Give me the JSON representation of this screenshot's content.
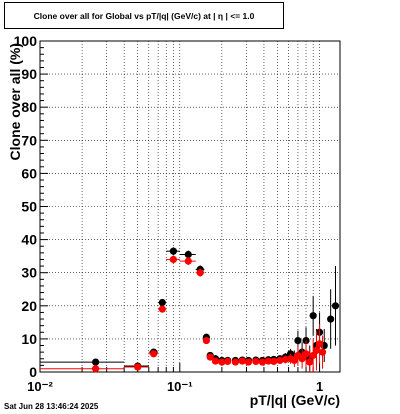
{
  "title": "Clone  over all for Global vs pT/|q| (GeV/c) at |  η  | <= 1.0",
  "timestamp": "Sat Jun 28 13:46:24 2025",
  "chart_data": {
    "type": "scatter",
    "title": "Clone  over all for Global vs pT/|q| (GeV/c) at |  η  | <= 1.0",
    "xlabel": "pT/|q| (GeV/c)",
    "ylabel": "Clone  over all (%)",
    "x_scale": "log",
    "xlim": [
      0.01,
      1.4
    ],
    "ylim": [
      0,
      100
    ],
    "x_tick_labels": [
      "10⁻²",
      "10⁻¹",
      "1"
    ],
    "y_tick_labels": [
      "0",
      "10",
      "20",
      "30",
      "40",
      "50",
      "60",
      "70",
      "80",
      "90",
      "100"
    ],
    "grid": true,
    "legend": "none",
    "series": [
      {
        "color": "#000000",
        "points": [
          {
            "x": 0.025,
            "y": 3.0,
            "xlo": 0.01,
            "xhi": 0.04,
            "err": 0.4
          },
          {
            "x": 0.05,
            "y": 1.8,
            "xlo": 0.04,
            "xhi": 0.06,
            "err": 0.3
          },
          {
            "x": 0.065,
            "y": 6.0,
            "xlo": 0.06,
            "xhi": 0.07,
            "err": 0.6
          },
          {
            "x": 0.075,
            "y": 21.0,
            "xlo": 0.07,
            "xhi": 0.08,
            "err": 1.0
          },
          {
            "x": 0.09,
            "y": 36.5,
            "xlo": 0.08,
            "xhi": 0.1,
            "err": 1.2
          },
          {
            "x": 0.115,
            "y": 35.5,
            "xlo": 0.1,
            "xhi": 0.13,
            "err": 1.2
          },
          {
            "x": 0.14,
            "y": 31.0,
            "xlo": 0.13,
            "xhi": 0.15,
            "err": 1.2
          },
          {
            "x": 0.155,
            "y": 10.5,
            "xlo": 0.15,
            "xhi": 0.16,
            "err": 0.8
          },
          {
            "x": 0.165,
            "y": 5.0,
            "xlo": 0.16,
            "xhi": 0.17,
            "err": 0.6
          },
          {
            "x": 0.18,
            "y": 4.0,
            "xlo": 0.175,
            "xhi": 0.185,
            "err": 0.5
          },
          {
            "x": 0.2,
            "y": 3.5,
            "xlo": 0.19,
            "xhi": 0.21,
            "err": 0.5
          },
          {
            "x": 0.22,
            "y": 3.5,
            "xlo": 0.21,
            "xhi": 0.23,
            "err": 0.5
          },
          {
            "x": 0.25,
            "y": 3.5,
            "xlo": 0.24,
            "xhi": 0.26,
            "err": 0.5
          },
          {
            "x": 0.28,
            "y": 3.6,
            "xlo": 0.27,
            "xhi": 0.29,
            "err": 0.5
          },
          {
            "x": 0.31,
            "y": 3.5,
            "xlo": 0.3,
            "xhi": 0.32,
            "err": 0.5
          },
          {
            "x": 0.35,
            "y": 3.6,
            "xlo": 0.34,
            "xhi": 0.36,
            "err": 0.6
          },
          {
            "x": 0.39,
            "y": 3.5,
            "xlo": 0.38,
            "xhi": 0.4,
            "err": 0.6
          },
          {
            "x": 0.43,
            "y": 3.7,
            "xlo": 0.42,
            "xhi": 0.44,
            "err": 0.7
          },
          {
            "x": 0.47,
            "y": 3.8,
            "xlo": 0.46,
            "xhi": 0.48,
            "err": 0.8
          },
          {
            "x": 0.52,
            "y": 4.0,
            "xlo": 0.51,
            "xhi": 0.53,
            "err": 1.0
          },
          {
            "x": 0.57,
            "y": 4.5,
            "xlo": 0.56,
            "xhi": 0.58,
            "err": 1.2
          },
          {
            "x": 0.62,
            "y": 5.5,
            "xlo": 0.61,
            "xhi": 0.63,
            "err": 1.5
          },
          {
            "x": 0.66,
            "y": 4.5,
            "xlo": 0.65,
            "xhi": 0.67,
            "err": 2.0
          },
          {
            "x": 0.7,
            "y": 9.5,
            "xlo": 0.69,
            "xhi": 0.71,
            "err": 3.0
          },
          {
            "x": 0.75,
            "y": 6.0,
            "xlo": 0.74,
            "xhi": 0.76,
            "err": 3.0
          },
          {
            "x": 0.8,
            "y": 9.5,
            "xlo": 0.79,
            "xhi": 0.81,
            "err": 4.0
          },
          {
            "x": 0.85,
            "y": 4.0,
            "xlo": 0.84,
            "xhi": 0.86,
            "err": 4.0
          },
          {
            "x": 0.9,
            "y": 17.0,
            "xlo": 0.89,
            "xhi": 0.91,
            "err": 6.0
          },
          {
            "x": 0.95,
            "y": 8.0,
            "xlo": 0.94,
            "xhi": 0.96,
            "err": 5.0
          },
          {
            "x": 1.0,
            "y": 12.0,
            "xlo": 0.99,
            "xhi": 1.01,
            "err": 6.0
          },
          {
            "x": 1.08,
            "y": 8.0,
            "xlo": 1.07,
            "xhi": 1.09,
            "err": 5.0
          },
          {
            "x": 1.2,
            "y": 16.0,
            "xlo": 1.15,
            "xhi": 1.25,
            "err": 9.0
          },
          {
            "x": 1.3,
            "y": 20.0,
            "xlo": 1.27,
            "xhi": 1.33,
            "err": 12.0
          }
        ]
      },
      {
        "color": "#ff0000",
        "points": [
          {
            "x": 0.025,
            "y": 1.0,
            "xlo": 0.01,
            "xhi": 0.04,
            "err": 0.3
          },
          {
            "x": 0.05,
            "y": 1.5,
            "xlo": 0.04,
            "xhi": 0.06,
            "err": 0.3
          },
          {
            "x": 0.065,
            "y": 5.5,
            "xlo": 0.06,
            "xhi": 0.07,
            "err": 0.6
          },
          {
            "x": 0.075,
            "y": 19.0,
            "xlo": 0.07,
            "xhi": 0.08,
            "err": 1.0
          },
          {
            "x": 0.09,
            "y": 34.0,
            "xlo": 0.08,
            "xhi": 0.1,
            "err": 1.2
          },
          {
            "x": 0.115,
            "y": 33.5,
            "xlo": 0.1,
            "xhi": 0.13,
            "err": 1.2
          },
          {
            "x": 0.14,
            "y": 30.0,
            "xlo": 0.13,
            "xhi": 0.15,
            "err": 1.2
          },
          {
            "x": 0.155,
            "y": 9.5,
            "xlo": 0.15,
            "xhi": 0.16,
            "err": 0.8
          },
          {
            "x": 0.165,
            "y": 4.5,
            "xlo": 0.16,
            "xhi": 0.17,
            "err": 0.6
          },
          {
            "x": 0.18,
            "y": 3.3,
            "xlo": 0.175,
            "xhi": 0.185,
            "err": 0.5
          },
          {
            "x": 0.2,
            "y": 3.0,
            "xlo": 0.19,
            "xhi": 0.21,
            "err": 0.5
          },
          {
            "x": 0.22,
            "y": 3.2,
            "xlo": 0.21,
            "xhi": 0.23,
            "err": 0.5
          },
          {
            "x": 0.25,
            "y": 3.0,
            "xlo": 0.24,
            "xhi": 0.26,
            "err": 0.5
          },
          {
            "x": 0.28,
            "y": 3.3,
            "xlo": 0.27,
            "xhi": 0.29,
            "err": 0.5
          },
          {
            "x": 0.31,
            "y": 3.0,
            "xlo": 0.3,
            "xhi": 0.32,
            "err": 0.5
          },
          {
            "x": 0.35,
            "y": 3.2,
            "xlo": 0.34,
            "xhi": 0.36,
            "err": 0.6
          },
          {
            "x": 0.39,
            "y": 3.0,
            "xlo": 0.38,
            "xhi": 0.4,
            "err": 0.6
          },
          {
            "x": 0.43,
            "y": 3.3,
            "xlo": 0.42,
            "xhi": 0.44,
            "err": 0.7
          },
          {
            "x": 0.47,
            "y": 3.2,
            "xlo": 0.46,
            "xhi": 0.48,
            "err": 0.8
          },
          {
            "x": 0.52,
            "y": 3.5,
            "xlo": 0.51,
            "xhi": 0.53,
            "err": 1.0
          },
          {
            "x": 0.57,
            "y": 3.8,
            "xlo": 0.56,
            "xhi": 0.58,
            "err": 1.2
          },
          {
            "x": 0.62,
            "y": 4.0,
            "xlo": 0.61,
            "xhi": 0.63,
            "err": 1.5
          },
          {
            "x": 0.66,
            "y": 3.5,
            "xlo": 0.65,
            "xhi": 0.67,
            "err": 2.0
          },
          {
            "x": 0.7,
            "y": 5.0,
            "xlo": 0.69,
            "xhi": 0.71,
            "err": 3.0
          },
          {
            "x": 0.75,
            "y": 4.0,
            "xlo": 0.74,
            "xhi": 0.76,
            "err": 3.0
          },
          {
            "x": 0.8,
            "y": 5.5,
            "xlo": 0.79,
            "xhi": 0.81,
            "err": 4.0
          },
          {
            "x": 0.85,
            "y": 3.0,
            "xlo": 0.84,
            "xhi": 0.86,
            "err": 4.0
          },
          {
            "x": 0.9,
            "y": 5.0,
            "xlo": 0.89,
            "xhi": 0.91,
            "err": 5.0
          },
          {
            "x": 0.95,
            "y": 6.5,
            "xlo": 0.94,
            "xhi": 0.96,
            "err": 6.0
          },
          {
            "x": 1.0,
            "y": 8.5,
            "xlo": 0.99,
            "xhi": 1.01,
            "err": 6.0
          },
          {
            "x": 1.05,
            "y": 6.0,
            "xlo": 1.04,
            "xhi": 1.06,
            "err": 5.0
          }
        ]
      }
    ]
  }
}
